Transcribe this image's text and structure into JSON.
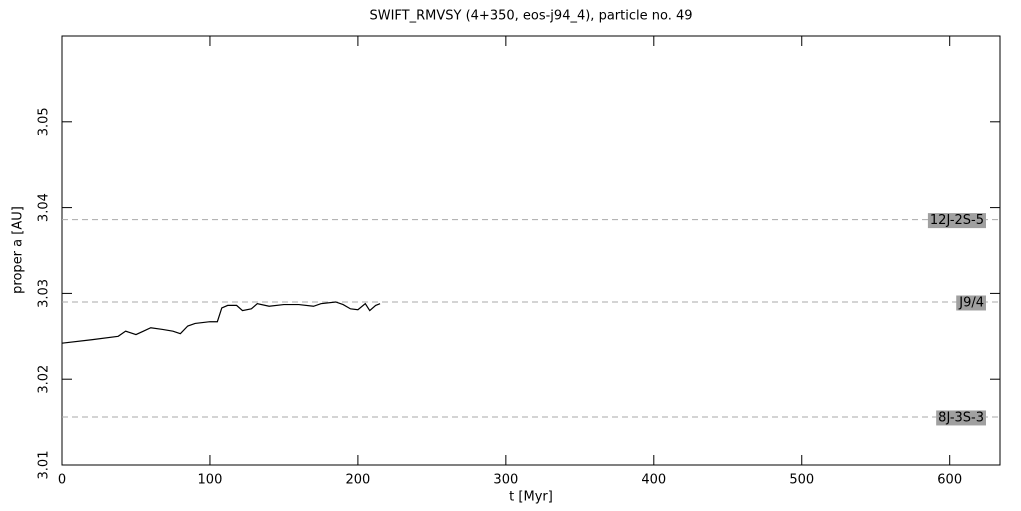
{
  "chart_data": {
    "type": "line",
    "title": "SWIFT_RMVSY (4+350, eos-j94_4), particle no. 49",
    "x_label": "t [Myr]",
    "y_label": "proper a [AU]",
    "xlim": [
      0,
      634
    ],
    "ylim": [
      3.01,
      3.06
    ],
    "xticks": [
      0,
      100,
      200,
      300,
      400,
      500,
      600
    ],
    "yticks": [
      3.01,
      3.02,
      3.03,
      3.04,
      3.05
    ],
    "series": [
      {
        "color": "#000000",
        "x": [
          0,
          20,
          38,
          43,
          50,
          55,
          60,
          68,
          75,
          80,
          85,
          90,
          100,
          105,
          108,
          112,
          118,
          122,
          128,
          132,
          140,
          150,
          160,
          170,
          175,
          185,
          190,
          195,
          200,
          205,
          208,
          212,
          215
        ],
        "values": [
          3.0242,
          3.0246,
          3.025,
          3.0256,
          3.0252,
          3.0256,
          3.026,
          3.0258,
          3.0256,
          3.0253,
          3.0262,
          3.0265,
          3.0267,
          3.0267,
          3.0283,
          3.0286,
          3.0286,
          3.028,
          3.0282,
          3.0288,
          3.0285,
          3.0287,
          3.0287,
          3.0285,
          3.0288,
          3.029,
          3.0287,
          3.0282,
          3.0281,
          3.0288,
          3.028,
          3.0286,
          3.0288
        ]
      }
    ],
    "resonances": [
      {
        "name": "12J-2S-5",
        "value": 3.0386
      },
      {
        "name": "J9/4",
        "value": 3.029
      },
      {
        "name": "8J-3S-3",
        "value": 3.0156
      }
    ]
  }
}
